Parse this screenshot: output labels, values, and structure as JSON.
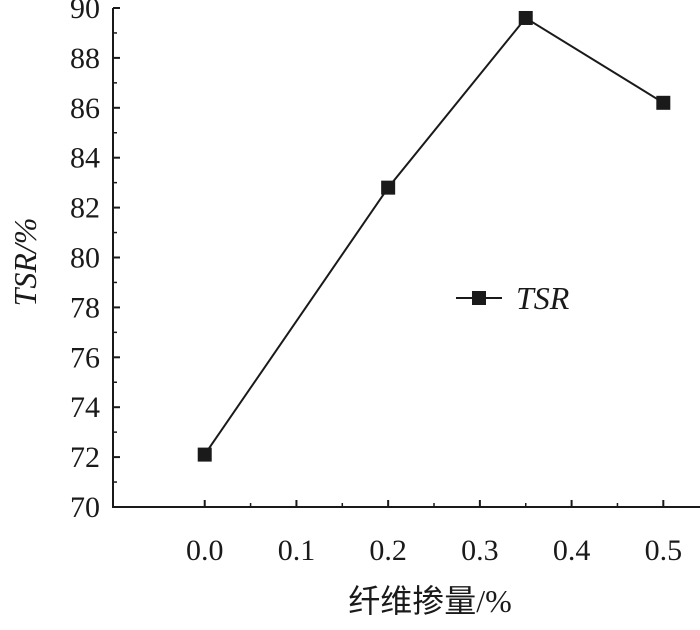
{
  "chart_data": {
    "type": "line",
    "title": "",
    "xlabel": "纤维掺量/%",
    "ylabel": "TSR/%",
    "xlim": [
      -0.1,
      0.54
    ],
    "ylim": [
      70,
      90
    ],
    "xticks": [
      "0.0",
      "0.1",
      "0.2",
      "0.3",
      "0.4",
      "0.5"
    ],
    "yticks": [
      "70",
      "72",
      "74",
      "76",
      "78",
      "80",
      "82",
      "84",
      "86",
      "88",
      "90"
    ],
    "grid": false,
    "legend_position": "center-right",
    "series": [
      {
        "name": "TSR",
        "x": [
          0.0,
          0.2,
          0.35,
          0.5
        ],
        "y": [
          72.1,
          82.8,
          89.6,
          86.2
        ],
        "color": "#1a1a1a",
        "marker": "square"
      }
    ]
  }
}
